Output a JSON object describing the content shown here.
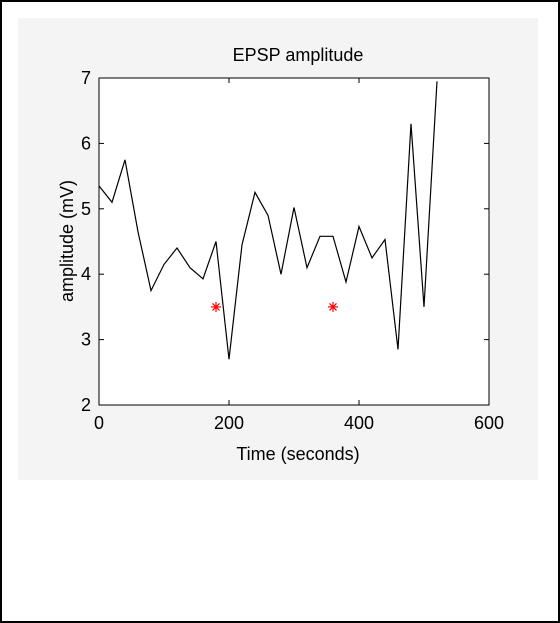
{
  "chart_data": {
    "type": "line",
    "title": "EPSP amplitude",
    "xlabel": "Time (seconds)",
    "ylabel": "amplitude (mV)",
    "xlim": [
      0,
      600
    ],
    "ylim": [
      2,
      7
    ],
    "xticks": [
      0,
      200,
      400,
      600
    ],
    "yticks": [
      2,
      3,
      4,
      5,
      6,
      7
    ],
    "grid": false,
    "series": [
      {
        "color": "#000000",
        "x": [
          0,
          20,
          40,
          60,
          80,
          100,
          120,
          140,
          160,
          180,
          200,
          220,
          240,
          260,
          280,
          300,
          320,
          340,
          360,
          380,
          400,
          420,
          440,
          460,
          480,
          500,
          520
        ],
        "y": [
          5.35,
          5.1,
          5.75,
          4.65,
          3.75,
          4.15,
          4.4,
          4.1,
          3.93,
          4.5,
          2.7,
          4.45,
          5.25,
          4.9,
          4.0,
          5.02,
          4.1,
          4.58,
          4.58,
          3.88,
          4.73,
          4.25,
          4.53,
          2.85,
          6.3,
          3.5,
          6.95
        ]
      }
    ],
    "markers": {
      "symbol": "*",
      "color": "#ff0000",
      "points": [
        {
          "x": 180,
          "y": 3.5
        },
        {
          "x": 360,
          "y": 3.5
        }
      ]
    }
  }
}
